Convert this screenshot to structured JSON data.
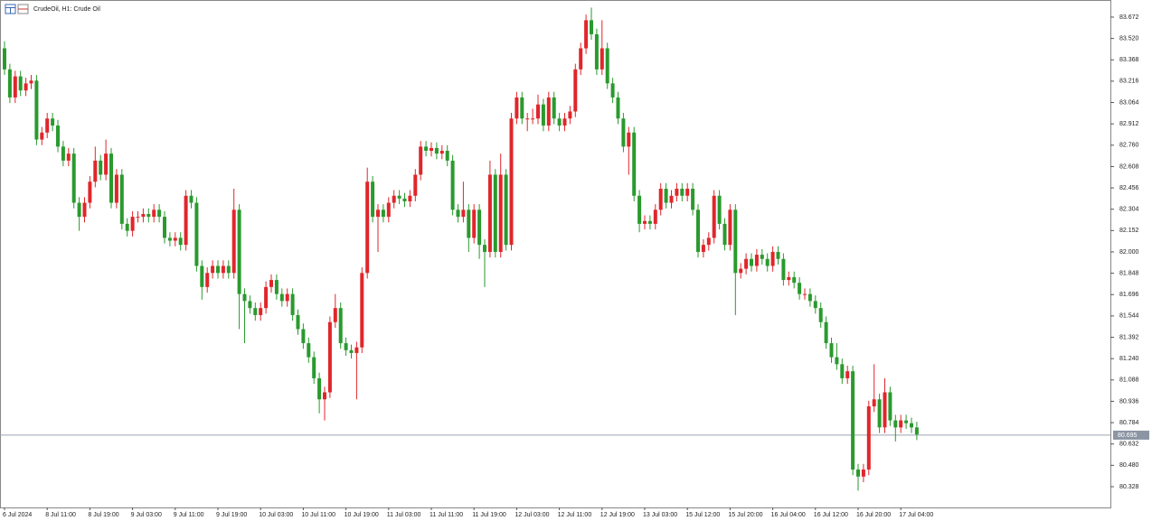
{
  "chart_data": {
    "type": "candlestick",
    "title": "CrudeOil, H1:  Crude Oil",
    "up_color": "#e0262b",
    "down_color": "#2a9a2e",
    "ylim": [
      80.18,
      83.794
    ],
    "yticks": [
      {
        "value": 83.672,
        "label": "83.672"
      },
      {
        "value": 83.52,
        "label": "83.520"
      },
      83.368,
      83.216,
      83.064,
      82.912,
      {
        "value": 82.76,
        "label": "82.760"
      },
      82.608,
      82.456,
      82.304,
      82.152,
      {
        "value": 82,
        "label": "82.000"
      },
      81.848,
      81.696,
      81.544,
      81.392,
      {
        "value": 81.24,
        "label": "81.240"
      },
      81.088,
      80.936,
      80.784,
      80.632,
      {
        "value": 80.48,
        "label": "80.480"
      },
      80.328
    ],
    "current_price": 80.695,
    "categories": [
      "6 Jul 2024",
      null,
      null,
      null,
      null,
      null,
      null,
      null,
      "8 Jul 11:00",
      null,
      null,
      null,
      null,
      null,
      null,
      null,
      "8 Jul 19:00",
      null,
      null,
      null,
      null,
      null,
      null,
      null,
      "9 Jul 03:00",
      null,
      null,
      null,
      null,
      null,
      null,
      null,
      "9 Jul 11:00",
      null,
      null,
      null,
      null,
      null,
      null,
      null,
      "9 Jul 19:00",
      null,
      null,
      null,
      null,
      null,
      null,
      null,
      "10 Jul 03:00",
      null,
      null,
      null,
      null,
      null,
      null,
      null,
      "10 Jul 11:00",
      null,
      null,
      null,
      null,
      null,
      null,
      null,
      "10 Jul 19:00",
      null,
      null,
      null,
      null,
      null,
      null,
      null,
      "11 Jul 03:00",
      null,
      null,
      null,
      null,
      null,
      null,
      null,
      "11 Jul 11:00",
      null,
      null,
      null,
      null,
      null,
      null,
      null,
      "11 Jul 19:00",
      null,
      null,
      null,
      null,
      null,
      null,
      null,
      "12 Jul 03:00",
      null,
      null,
      null,
      null,
      null,
      null,
      null,
      "12 Jul 11:00",
      null,
      null,
      null,
      null,
      null,
      null,
      null,
      "12 Jul 19:00",
      null,
      null,
      null,
      null,
      null,
      null,
      null,
      "13 Jul 03:00",
      null,
      null,
      null,
      null,
      null,
      null,
      null,
      "15 Jul 12:00",
      null,
      null,
      null,
      null,
      null,
      null,
      null,
      "15 Jul 20:00",
      null,
      null,
      null,
      null,
      null,
      null,
      null,
      "16 Jul 04:00",
      null,
      null,
      null,
      null,
      null,
      null,
      null,
      "16 Jul 12:00",
      null,
      null,
      null,
      null,
      null,
      null,
      null,
      "16 Jul 20:00",
      null,
      null,
      null,
      null,
      null,
      null,
      null,
      "17 Jul 04:00",
      null,
      null,
      null
    ],
    "ohlc": [
      [
        83.45,
        83.5,
        83.26,
        83.3
      ],
      [
        83.3,
        83.34,
        83.06,
        83.1
      ],
      [
        83.1,
        83.29,
        83.06,
        83.25
      ],
      [
        83.25,
        83.29,
        83.11,
        83.15
      ],
      [
        83.15,
        83.24,
        83.11,
        83.2
      ],
      [
        83.2,
        83.26,
        83.16,
        83.22
      ],
      [
        83.22,
        83.26,
        82.76,
        82.8
      ],
      [
        82.8,
        82.89,
        82.76,
        82.85
      ],
      [
        82.85,
        82.99,
        82.81,
        82.95
      ],
      [
        82.95,
        82.99,
        82.86,
        82.9
      ],
      [
        82.9,
        82.94,
        82.71,
        82.75
      ],
      [
        82.75,
        82.79,
        82.61,
        82.65
      ],
      [
        82.65,
        82.74,
        82.61,
        82.7
      ],
      [
        82.7,
        82.74,
        82.31,
        82.35
      ],
      [
        82.35,
        82.39,
        82.15,
        82.25
      ],
      [
        82.25,
        82.39,
        82.21,
        82.35
      ],
      [
        82.35,
        82.54,
        82.31,
        82.5
      ],
      [
        82.5,
        82.75,
        82.46,
        82.65
      ],
      [
        82.65,
        82.69,
        82.51,
        82.55
      ],
      [
        82.55,
        82.8,
        82.51,
        82.7
      ],
      [
        82.7,
        82.74,
        82.31,
        82.35
      ],
      [
        82.35,
        82.59,
        82.31,
        82.55
      ],
      [
        82.55,
        82.59,
        82.16,
        82.2
      ],
      [
        82.2,
        82.24,
        82.11,
        82.15
      ],
      [
        82.15,
        82.29,
        82.11,
        82.25
      ],
      [
        82.25,
        82.29,
        82.21,
        82.25
      ],
      [
        82.25,
        82.31,
        82.21,
        82.27
      ],
      [
        82.27,
        82.31,
        82.21,
        82.25
      ],
      [
        82.25,
        82.34,
        82.21,
        82.3
      ],
      [
        82.3,
        82.34,
        82.21,
        82.25
      ],
      [
        82.25,
        82.29,
        82.06,
        82.1
      ],
      [
        82.1,
        82.14,
        82.04,
        82.08
      ],
      [
        82.08,
        82.14,
        82.04,
        82.1
      ],
      [
        82.1,
        82.14,
        82.01,
        82.05
      ],
      [
        82.05,
        82.44,
        82.01,
        82.4
      ],
      [
        82.4,
        82.44,
        82.31,
        82.35
      ],
      [
        82.35,
        82.39,
        81.86,
        81.9
      ],
      [
        81.9,
        81.94,
        81.66,
        81.75
      ],
      [
        81.75,
        81.89,
        81.71,
        81.85
      ],
      [
        81.85,
        81.94,
        81.81,
        81.9
      ],
      [
        81.9,
        81.94,
        81.81,
        81.85
      ],
      [
        81.85,
        81.94,
        81.81,
        81.9
      ],
      [
        81.9,
        81.94,
        81.81,
        81.85
      ],
      [
        81.85,
        82.45,
        81.81,
        82.3
      ],
      [
        82.3,
        82.34,
        81.45,
        81.7
      ],
      [
        81.7,
        81.74,
        81.35,
        81.65
      ],
      [
        81.65,
        81.69,
        81.56,
        81.6
      ],
      [
        81.6,
        81.64,
        81.51,
        81.55
      ],
      [
        81.55,
        81.64,
        81.51,
        81.6
      ],
      [
        81.6,
        81.79,
        81.56,
        81.75
      ],
      [
        81.75,
        81.84,
        81.71,
        81.8
      ],
      [
        81.8,
        81.84,
        81.66,
        81.7
      ],
      [
        81.7,
        81.74,
        81.61,
        81.65
      ],
      [
        81.65,
        81.74,
        81.61,
        81.7
      ],
      [
        81.7,
        81.74,
        81.51,
        81.55
      ],
      [
        81.55,
        81.59,
        81.41,
        81.45
      ],
      [
        81.45,
        81.49,
        81.31,
        81.35
      ],
      [
        81.35,
        81.39,
        81.21,
        81.25
      ],
      [
        81.25,
        81.29,
        81.06,
        81.1
      ],
      [
        81.1,
        81.14,
        80.85,
        80.95
      ],
      [
        80.95,
        81.04,
        80.8,
        81.0
      ],
      [
        81.0,
        81.54,
        80.96,
        81.5
      ],
      [
        81.5,
        81.7,
        81.46,
        81.6
      ],
      [
        81.6,
        81.64,
        81.31,
        81.35
      ],
      [
        81.35,
        81.39,
        81.26,
        81.3
      ],
      [
        81.3,
        81.34,
        81.24,
        81.28
      ],
      [
        81.28,
        81.36,
        80.95,
        81.32
      ],
      [
        81.32,
        81.89,
        81.28,
        81.85
      ],
      [
        81.85,
        82.6,
        81.81,
        82.5
      ],
      [
        82.5,
        82.54,
        82.21,
        82.25
      ],
      [
        82.25,
        82.34,
        82.0,
        82.3
      ],
      [
        82.3,
        82.34,
        82.21,
        82.25
      ],
      [
        82.25,
        82.39,
        82.21,
        82.35
      ],
      [
        82.35,
        82.44,
        82.31,
        82.4
      ],
      [
        82.4,
        82.44,
        82.34,
        82.38
      ],
      [
        82.38,
        82.42,
        82.32,
        82.36
      ],
      [
        82.36,
        82.44,
        82.32,
        82.4
      ],
      [
        82.4,
        82.59,
        82.36,
        82.55
      ],
      [
        82.55,
        82.79,
        82.51,
        82.75
      ],
      [
        82.75,
        82.79,
        82.68,
        82.72
      ],
      [
        82.72,
        82.78,
        82.68,
        82.74
      ],
      [
        82.74,
        82.78,
        82.66,
        82.7
      ],
      [
        82.7,
        82.76,
        82.66,
        82.72
      ],
      [
        82.72,
        82.76,
        82.61,
        82.65
      ],
      [
        82.65,
        82.69,
        82.26,
        82.3
      ],
      [
        82.3,
        82.34,
        82.21,
        82.25
      ],
      [
        82.25,
        82.5,
        82.21,
        82.3
      ],
      [
        82.3,
        82.34,
        82.0,
        82.1
      ],
      [
        82.1,
        82.34,
        82.06,
        82.3
      ],
      [
        82.3,
        82.34,
        81.95,
        82.05
      ],
      [
        82.05,
        82.09,
        81.75,
        82.0
      ],
      [
        82.0,
        82.65,
        81.96,
        82.55
      ],
      [
        82.55,
        82.59,
        81.96,
        82.0
      ],
      [
        82.0,
        82.7,
        81.96,
        82.55
      ],
      [
        82.55,
        82.59,
        82.01,
        82.05
      ],
      [
        82.05,
        82.99,
        82.01,
        82.95
      ],
      [
        82.95,
        83.14,
        82.91,
        83.1
      ],
      [
        83.1,
        83.14,
        82.91,
        82.95
      ],
      [
        82.95,
        82.99,
        82.86,
        82.95
      ],
      [
        82.95,
        83.02,
        82.91,
        82.95
      ],
      [
        82.95,
        83.12,
        82.91,
        83.05
      ],
      [
        83.05,
        83.09,
        82.86,
        82.9
      ],
      [
        82.9,
        83.14,
        82.86,
        83.1
      ],
      [
        83.1,
        83.14,
        82.91,
        82.95
      ],
      [
        82.95,
        82.99,
        82.86,
        82.9
      ],
      [
        82.9,
        82.99,
        82.86,
        82.95
      ],
      [
        82.95,
        83.04,
        82.91,
        83.0
      ],
      [
        83.0,
        83.34,
        82.96,
        83.3
      ],
      [
        83.3,
        83.49,
        83.26,
        83.45
      ],
      [
        83.45,
        83.69,
        83.41,
        83.65
      ],
      [
        83.65,
        83.74,
        83.51,
        83.55
      ],
      [
        83.55,
        83.59,
        83.26,
        83.3
      ],
      [
        83.3,
        83.65,
        83.26,
        83.45
      ],
      [
        83.45,
        83.49,
        83.16,
        83.2
      ],
      [
        83.2,
        83.24,
        83.06,
        83.1
      ],
      [
        83.1,
        83.14,
        82.91,
        82.95
      ],
      [
        82.95,
        82.99,
        82.71,
        82.75
      ],
      [
        82.75,
        82.89,
        82.55,
        82.85
      ],
      [
        82.85,
        82.89,
        82.36,
        82.4
      ],
      [
        82.4,
        82.44,
        82.14,
        82.2
      ],
      [
        82.2,
        82.26,
        82.16,
        82.22
      ],
      [
        82.22,
        82.26,
        82.16,
        82.2
      ],
      [
        82.2,
        82.34,
        82.16,
        82.3
      ],
      [
        82.3,
        82.49,
        82.26,
        82.45
      ],
      [
        82.45,
        82.49,
        82.31,
        82.35
      ],
      [
        82.35,
        82.44,
        82.31,
        82.4
      ],
      [
        82.4,
        82.49,
        82.36,
        82.45
      ],
      [
        82.45,
        82.49,
        82.36,
        82.4
      ],
      [
        82.4,
        82.49,
        82.36,
        82.45
      ],
      [
        82.45,
        82.49,
        82.26,
        82.3
      ],
      [
        82.3,
        82.34,
        81.96,
        82.0
      ],
      [
        82.0,
        82.09,
        81.96,
        82.05
      ],
      [
        82.05,
        82.14,
        82.01,
        82.1
      ],
      [
        82.1,
        82.44,
        82.06,
        82.4
      ],
      [
        82.4,
        82.44,
        82.16,
        82.2
      ],
      [
        82.2,
        82.24,
        82.01,
        82.05
      ],
      [
        82.05,
        82.34,
        82.01,
        82.3
      ],
      [
        82.3,
        82.34,
        81.55,
        81.85
      ],
      [
        81.85,
        81.92,
        81.81,
        81.88
      ],
      [
        81.88,
        81.99,
        81.84,
        81.95
      ],
      [
        81.95,
        81.99,
        81.86,
        81.9
      ],
      [
        81.9,
        82.02,
        81.86,
        81.98
      ],
      [
        81.98,
        82.02,
        81.91,
        81.95
      ],
      [
        81.95,
        81.99,
        81.86,
        81.9
      ],
      [
        81.9,
        82.04,
        81.86,
        82.0
      ],
      [
        82.0,
        82.04,
        81.91,
        81.95
      ],
      [
        81.95,
        81.99,
        81.76,
        81.8
      ],
      [
        81.8,
        81.86,
        81.76,
        81.82
      ],
      [
        81.82,
        81.86,
        81.74,
        81.78
      ],
      [
        81.78,
        81.82,
        81.66,
        81.7
      ],
      [
        81.7,
        81.74,
        81.66,
        81.7
      ],
      [
        81.7,
        81.74,
        81.61,
        81.65
      ],
      [
        81.65,
        81.69,
        81.56,
        81.6
      ],
      [
        81.6,
        81.64,
        81.46,
        81.5
      ],
      [
        81.5,
        81.54,
        81.31,
        81.35
      ],
      [
        81.35,
        81.39,
        81.21,
        81.25
      ],
      [
        81.25,
        81.35,
        81.16,
        81.2
      ],
      [
        81.2,
        81.24,
        81.06,
        81.1
      ],
      [
        81.1,
        81.19,
        81.06,
        81.15
      ],
      [
        81.15,
        81.19,
        80.41,
        80.45
      ],
      [
        80.45,
        80.49,
        80.3,
        80.4
      ],
      [
        80.4,
        80.49,
        80.36,
        80.45
      ],
      [
        80.45,
        80.94,
        80.41,
        80.9
      ],
      [
        80.9,
        81.2,
        80.86,
        80.95
      ],
      [
        80.95,
        80.99,
        80.71,
        80.75
      ],
      [
        80.75,
        81.1,
        80.71,
        81.0
      ],
      [
        81.0,
        81.04,
        80.76,
        80.8
      ],
      [
        80.8,
        80.84,
        80.65,
        80.75
      ],
      [
        80.75,
        80.84,
        80.71,
        80.8
      ],
      [
        80.8,
        80.84,
        80.74,
        80.78
      ],
      [
        80.78,
        80.82,
        80.71,
        80.75
      ],
      [
        80.75,
        80.79,
        80.66,
        80.7
      ]
    ]
  }
}
